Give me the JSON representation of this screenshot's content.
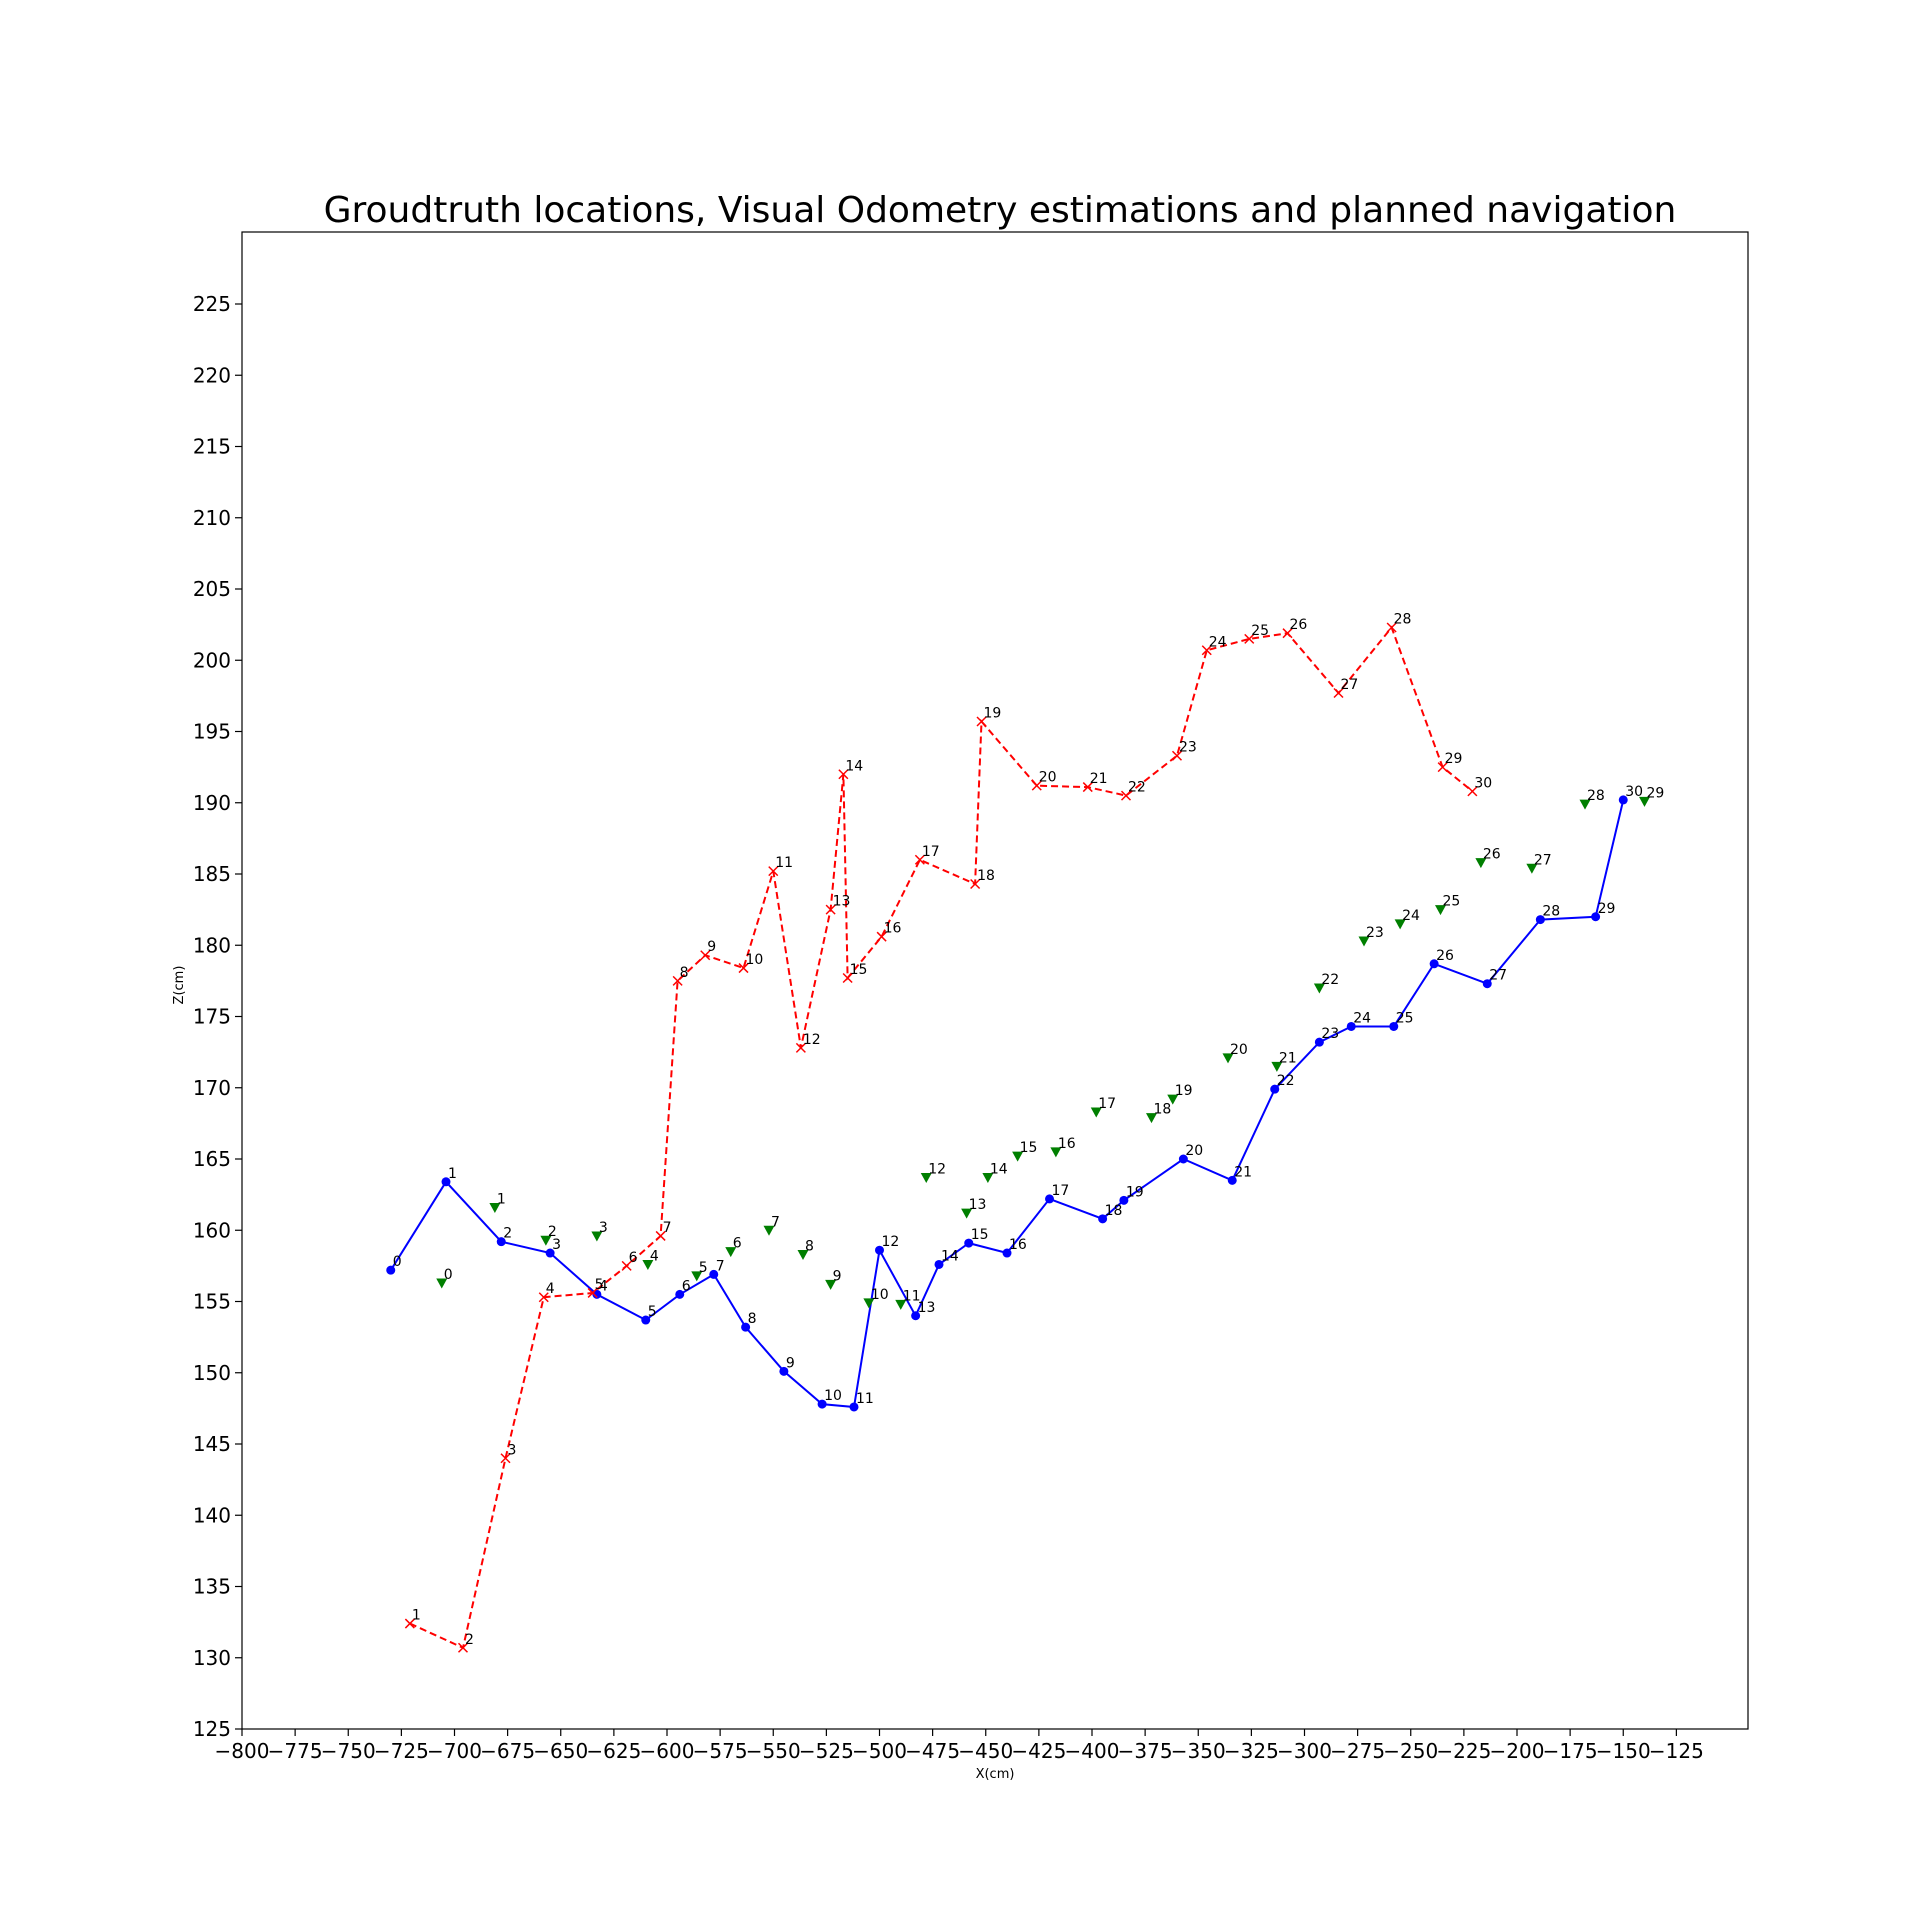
{
  "chart_data": {
    "type": "scatter",
    "title": "Groudtruth locations, Visual Odometry estimations and planned navigation",
    "xlabel": "X(cm)",
    "ylabel": "Z(cm)",
    "xlim": [
      -800,
      -100
    ],
    "ylim": [
      125,
      230
    ],
    "xticks": [
      -800,
      -775,
      -750,
      -725,
      -700,
      -675,
      -650,
      -625,
      -600,
      -575,
      -550,
      -525,
      -500,
      -475,
      -450,
      -425,
      -400,
      -375,
      -350,
      -325,
      -300,
      -275,
      -250,
      -225,
      -200,
      -175,
      -150,
      -125
    ],
    "yticks": [
      125,
      130,
      135,
      140,
      145,
      150,
      155,
      160,
      165,
      170,
      175,
      180,
      185,
      190,
      195,
      200,
      205,
      210,
      215,
      220,
      225
    ],
    "grid": false,
    "series": [
      {
        "style": "solid-line-circle",
        "color": "#0000ff",
        "points": [
          {
            "label": "0",
            "x": -730,
            "y": 157.2
          },
          {
            "label": "1",
            "x": -704,
            "y": 163.4
          },
          {
            "label": "2",
            "x": -678,
            "y": 159.2
          },
          {
            "label": "3",
            "x": -655,
            "y": 158.4
          },
          {
            "label": "4",
            "x": -633,
            "y": 155.5
          },
          {
            "label": "5",
            "x": -610,
            "y": 153.7
          },
          {
            "label": "6",
            "x": -594,
            "y": 155.5
          },
          {
            "label": "7",
            "x": -578,
            "y": 156.9
          },
          {
            "label": "8",
            "x": -563,
            "y": 153.2
          },
          {
            "label": "9",
            "x": -545,
            "y": 150.1
          },
          {
            "label": "10",
            "x": -527,
            "y": 147.8
          },
          {
            "label": "11",
            "x": -512,
            "y": 147.6
          },
          {
            "label": "12",
            "x": -500,
            "y": 158.6
          },
          {
            "label": "13",
            "x": -483,
            "y": 154.0
          },
          {
            "label": "14",
            "x": -472,
            "y": 157.6
          },
          {
            "label": "15",
            "x": -458,
            "y": 159.1
          },
          {
            "label": "16",
            "x": -440,
            "y": 158.4
          },
          {
            "label": "17",
            "x": -420,
            "y": 162.2
          },
          {
            "label": "18",
            "x": -395,
            "y": 160.8
          },
          {
            "label": "19",
            "x": -385,
            "y": 162.1
          },
          {
            "label": "20",
            "x": -357,
            "y": 165.0
          },
          {
            "label": "21",
            "x": -334,
            "y": 163.5
          },
          {
            "label": "22",
            "x": -314,
            "y": 169.9
          },
          {
            "label": "23",
            "x": -293,
            "y": 173.2
          },
          {
            "label": "24",
            "x": -278,
            "y": 174.3
          },
          {
            "label": "25",
            "x": -258,
            "y": 174.3
          },
          {
            "label": "26",
            "x": -239,
            "y": 178.7
          },
          {
            "label": "27",
            "x": -214,
            "y": 177.3
          },
          {
            "label": "28",
            "x": -189,
            "y": 181.8
          },
          {
            "label": "29",
            "x": -163,
            "y": 182.0
          },
          {
            "label": "30",
            "x": -150,
            "y": 190.2
          }
        ]
      },
      {
        "style": "dashed-line-x",
        "color": "#ff0000",
        "points": [
          {
            "label": "1",
            "x": -721,
            "y": 132.4
          },
          {
            "label": "2",
            "x": -696,
            "y": 130.7
          },
          {
            "label": "3",
            "x": -676,
            "y": 144.0
          },
          {
            "label": "4",
            "x": -658,
            "y": 155.3
          },
          {
            "label": "5",
            "x": -635,
            "y": 155.6
          },
          {
            "label": "6",
            "x": -619,
            "y": 157.5
          },
          {
            "label": "7",
            "x": -603,
            "y": 159.6
          },
          {
            "label": "8",
            "x": -595,
            "y": 177.5
          },
          {
            "label": "9",
            "x": -582,
            "y": 179.3
          },
          {
            "label": "10",
            "x": -564,
            "y": 178.4
          },
          {
            "label": "11",
            "x": -550,
            "y": 185.2
          },
          {
            "label": "12",
            "x": -537,
            "y": 172.8
          },
          {
            "label": "13",
            "x": -523,
            "y": 182.5
          },
          {
            "label": "14",
            "x": -517,
            "y": 192.0
          },
          {
            "label": "15",
            "x": -515,
            "y": 177.7
          },
          {
            "label": "16",
            "x": -499,
            "y": 180.6
          },
          {
            "label": "17",
            "x": -481,
            "y": 186.0
          },
          {
            "label": "18",
            "x": -455,
            "y": 184.3
          },
          {
            "label": "19",
            "x": -452,
            "y": 195.7
          },
          {
            "label": "20",
            "x": -426,
            "y": 191.2
          },
          {
            "label": "21",
            "x": -402,
            "y": 191.1
          },
          {
            "label": "22",
            "x": -384,
            "y": 190.5
          },
          {
            "label": "23",
            "x": -360,
            "y": 193.3
          },
          {
            "label": "24",
            "x": -346,
            "y": 200.7
          },
          {
            "label": "25",
            "x": -326,
            "y": 201.5
          },
          {
            "label": "26",
            "x": -308,
            "y": 201.9
          },
          {
            "label": "27",
            "x": -284,
            "y": 197.7
          },
          {
            "label": "28",
            "x": -259,
            "y": 202.3
          },
          {
            "label": "29",
            "x": -235,
            "y": 192.5
          },
          {
            "label": "30",
            "x": -221,
            "y": 190.8
          }
        ]
      },
      {
        "style": "triangle-marker",
        "color": "#007f00",
        "points": [
          {
            "label": "0",
            "x": -706,
            "y": 156.3
          },
          {
            "label": "1",
            "x": -681,
            "y": 161.6
          },
          {
            "label": "2",
            "x": -657,
            "y": 159.3
          },
          {
            "label": "3",
            "x": -633,
            "y": 159.6
          },
          {
            "label": "4",
            "x": -609,
            "y": 157.6
          },
          {
            "label": "5",
            "x": -586,
            "y": 156.8
          },
          {
            "label": "6",
            "x": -570,
            "y": 158.5
          },
          {
            "label": "7",
            "x": -552,
            "y": 160.0
          },
          {
            "label": "8",
            "x": -536,
            "y": 158.3
          },
          {
            "label": "9",
            "x": -523,
            "y": 156.2
          },
          {
            "label": "10",
            "x": -505,
            "y": 154.9
          },
          {
            "label": "11",
            "x": -490,
            "y": 154.8
          },
          {
            "label": "12",
            "x": -478,
            "y": 163.7
          },
          {
            "label": "13",
            "x": -459,
            "y": 161.2
          },
          {
            "label": "14",
            "x": -449,
            "y": 163.7
          },
          {
            "label": "15",
            "x": -435,
            "y": 165.2
          },
          {
            "label": "16",
            "x": -417,
            "y": 165.5
          },
          {
            "label": "17",
            "x": -398,
            "y": 168.3
          },
          {
            "label": "18",
            "x": -372,
            "y": 167.9
          },
          {
            "label": "19",
            "x": -362,
            "y": 169.2
          },
          {
            "label": "20",
            "x": -336,
            "y": 172.1
          },
          {
            "label": "21",
            "x": -313,
            "y": 171.5
          },
          {
            "label": "22",
            "x": -293,
            "y": 177.0
          },
          {
            "label": "23",
            "x": -272,
            "y": 180.3
          },
          {
            "label": "24",
            "x": -255,
            "y": 181.5
          },
          {
            "label": "25",
            "x": -236,
            "y": 182.5
          },
          {
            "label": "26",
            "x": -217,
            "y": 185.8
          },
          {
            "label": "27",
            "x": -193,
            "y": 185.4
          },
          {
            "label": "28",
            "x": -168,
            "y": 189.9
          },
          {
            "label": "29",
            "x": -140,
            "y": 190.1
          }
        ]
      }
    ]
  }
}
